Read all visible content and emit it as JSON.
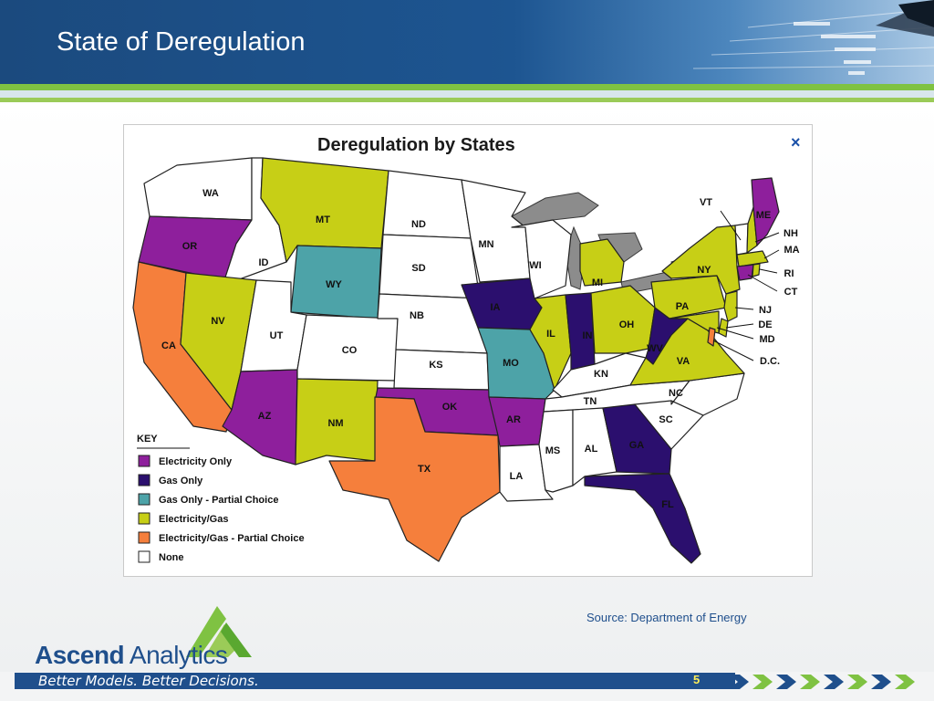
{
  "slide": {
    "title": "State of Deregulation",
    "source": "Source: Department of Energy",
    "page_number": "5"
  },
  "brand": {
    "name_bold": "Ascend",
    "name_regular": " Analytics",
    "tagline": "Better Models. Better Decisions."
  },
  "map": {
    "title": "Deregulation by States",
    "close_symbol": "×",
    "key_title": "KEY",
    "legend": [
      {
        "id": "elec",
        "label": "Electricity Only",
        "color": "#8e1f9c"
      },
      {
        "id": "gas",
        "label": "Gas Only",
        "color": "#2b0f6e"
      },
      {
        "id": "gaspc",
        "label": "Gas Only - Partial Choice",
        "color": "#4da3a8"
      },
      {
        "id": "elecgas",
        "label": "Electricity/Gas",
        "color": "#c7cf16"
      },
      {
        "id": "elecgaspc",
        "label": "Electricity/Gas - Partial Choice",
        "color": "#f57f3c"
      },
      {
        "id": "none",
        "label": "None",
        "color": "#ffffff"
      }
    ],
    "states": [
      {
        "abbr": "WA",
        "cat": "none"
      },
      {
        "abbr": "OR",
        "cat": "elec"
      },
      {
        "abbr": "CA",
        "cat": "elecgaspc"
      },
      {
        "abbr": "ID",
        "cat": "none"
      },
      {
        "abbr": "NV",
        "cat": "elecgas"
      },
      {
        "abbr": "MT",
        "cat": "elecgas"
      },
      {
        "abbr": "WY",
        "cat": "gaspc"
      },
      {
        "abbr": "UT",
        "cat": "none"
      },
      {
        "abbr": "AZ",
        "cat": "elec"
      },
      {
        "abbr": "CO",
        "cat": "none"
      },
      {
        "abbr": "NM",
        "cat": "elecgas"
      },
      {
        "abbr": "ND",
        "cat": "none"
      },
      {
        "abbr": "SD",
        "cat": "none"
      },
      {
        "abbr": "NB",
        "cat": "none"
      },
      {
        "abbr": "KS",
        "cat": "none"
      },
      {
        "abbr": "OK",
        "cat": "elec"
      },
      {
        "abbr": "TX",
        "cat": "elecgaspc"
      },
      {
        "abbr": "MN",
        "cat": "none"
      },
      {
        "abbr": "IA",
        "cat": "gas"
      },
      {
        "abbr": "MO",
        "cat": "gaspc"
      },
      {
        "abbr": "AR",
        "cat": "elec"
      },
      {
        "abbr": "LA",
        "cat": "none"
      },
      {
        "abbr": "WI",
        "cat": "none"
      },
      {
        "abbr": "IL",
        "cat": "elecgas"
      },
      {
        "abbr": "MI",
        "cat": "elecgas"
      },
      {
        "abbr": "IN",
        "cat": "gas"
      },
      {
        "abbr": "OH",
        "cat": "elecgas"
      },
      {
        "abbr": "KN",
        "cat": "none"
      },
      {
        "abbr": "TN",
        "cat": "none"
      },
      {
        "abbr": "MS",
        "cat": "none"
      },
      {
        "abbr": "AL",
        "cat": "none"
      },
      {
        "abbr": "GA",
        "cat": "gas"
      },
      {
        "abbr": "FL",
        "cat": "gas"
      },
      {
        "abbr": "SC",
        "cat": "none"
      },
      {
        "abbr": "NC",
        "cat": "none"
      },
      {
        "abbr": "VA",
        "cat": "elecgas"
      },
      {
        "abbr": "WV",
        "cat": "gas"
      },
      {
        "abbr": "PA",
        "cat": "elecgas"
      },
      {
        "abbr": "NY",
        "cat": "elecgas"
      },
      {
        "abbr": "VT",
        "cat": "none"
      },
      {
        "abbr": "NH",
        "cat": "elecgas"
      },
      {
        "abbr": "ME",
        "cat": "elec"
      },
      {
        "abbr": "MA",
        "cat": "elecgas"
      },
      {
        "abbr": "RI",
        "cat": "elecgas"
      },
      {
        "abbr": "CT",
        "cat": "elec"
      },
      {
        "abbr": "NJ",
        "cat": "elecgas"
      },
      {
        "abbr": "DE",
        "cat": "elecgas"
      },
      {
        "abbr": "MD",
        "cat": "elecgas"
      },
      {
        "abbr": "D.C.",
        "cat": "elecgaspc"
      }
    ]
  }
}
